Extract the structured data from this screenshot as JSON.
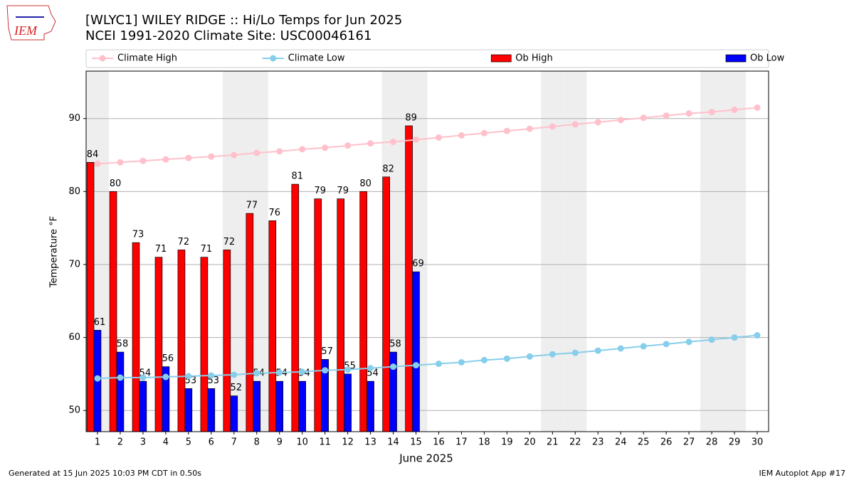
{
  "logo": "IEM",
  "footer": {
    "left": "Generated at 15 Jun 2025 10:03 PM CDT in 0.50s",
    "right": "IEM Autoplot App #17"
  },
  "chart_data": {
    "type": "bar",
    "title": "[WLYC1] WILEY RIDGE :: Hi/Lo Temps for Jun 2025",
    "subtitle": "NCEI 1991-2020 Climate Site: USC00046161",
    "x_label": "June 2025",
    "y_label": "Temperature °F",
    "x": [
      1,
      2,
      3,
      4,
      5,
      6,
      7,
      8,
      9,
      10,
      11,
      12,
      13,
      14,
      15,
      16,
      17,
      18,
      19,
      20,
      21,
      22,
      23,
      24,
      25,
      26,
      27,
      28,
      29,
      30
    ],
    "xlim": [
      0.5,
      30.5
    ],
    "xticks": [
      1,
      2,
      3,
      4,
      5,
      6,
      7,
      8,
      9,
      10,
      11,
      12,
      13,
      14,
      15,
      16,
      17,
      18,
      19,
      20,
      21,
      22,
      23,
      24,
      25,
      26,
      27,
      28,
      29,
      30
    ],
    "ylim": [
      47.1,
      96.5
    ],
    "yticks": [
      50,
      60,
      70,
      80,
      90
    ],
    "grid": true,
    "legend": "top",
    "shaded_days": [
      1,
      7,
      8,
      14,
      15,
      21,
      22,
      28,
      29
    ],
    "series": [
      {
        "name": "Climate High",
        "style": "line",
        "color": "#ffc0cb",
        "values": [
          83.8,
          84.0,
          84.2,
          84.4,
          84.6,
          84.8,
          85.0,
          85.3,
          85.5,
          85.8,
          86.0,
          86.3,
          86.6,
          86.8,
          87.1,
          87.4,
          87.7,
          88.0,
          88.3,
          88.6,
          88.9,
          89.2,
          89.5,
          89.8,
          90.1,
          90.4,
          90.7,
          90.9,
          91.2,
          91.5
        ]
      },
      {
        "name": "Climate Low",
        "style": "line",
        "color": "#87ceeb",
        "values": [
          54.4,
          54.5,
          54.5,
          54.6,
          54.7,
          54.8,
          54.9,
          55.1,
          55.2,
          55.3,
          55.5,
          55.6,
          55.8,
          56.0,
          56.2,
          56.4,
          56.6,
          56.9,
          57.1,
          57.4,
          57.7,
          57.9,
          58.2,
          58.5,
          58.8,
          59.1,
          59.4,
          59.7,
          60.0,
          60.3
        ]
      },
      {
        "name": "Ob High",
        "style": "bar",
        "color": "#ff0000",
        "values": [
          84,
          80,
          73,
          71,
          72,
          71,
          72,
          77,
          76,
          81,
          79,
          79,
          80,
          82,
          89,
          null,
          null,
          null,
          null,
          null,
          null,
          null,
          null,
          null,
          null,
          null,
          null,
          null,
          null,
          null
        ]
      },
      {
        "name": "Ob Low",
        "style": "bar",
        "color": "#0000ff",
        "values": [
          61,
          58,
          54,
          56,
          53,
          53,
          52,
          54,
          54,
          54,
          57,
          55,
          54,
          58,
          69,
          null,
          null,
          null,
          null,
          null,
          null,
          null,
          null,
          null,
          null,
          null,
          null,
          null,
          null,
          null
        ]
      }
    ]
  }
}
